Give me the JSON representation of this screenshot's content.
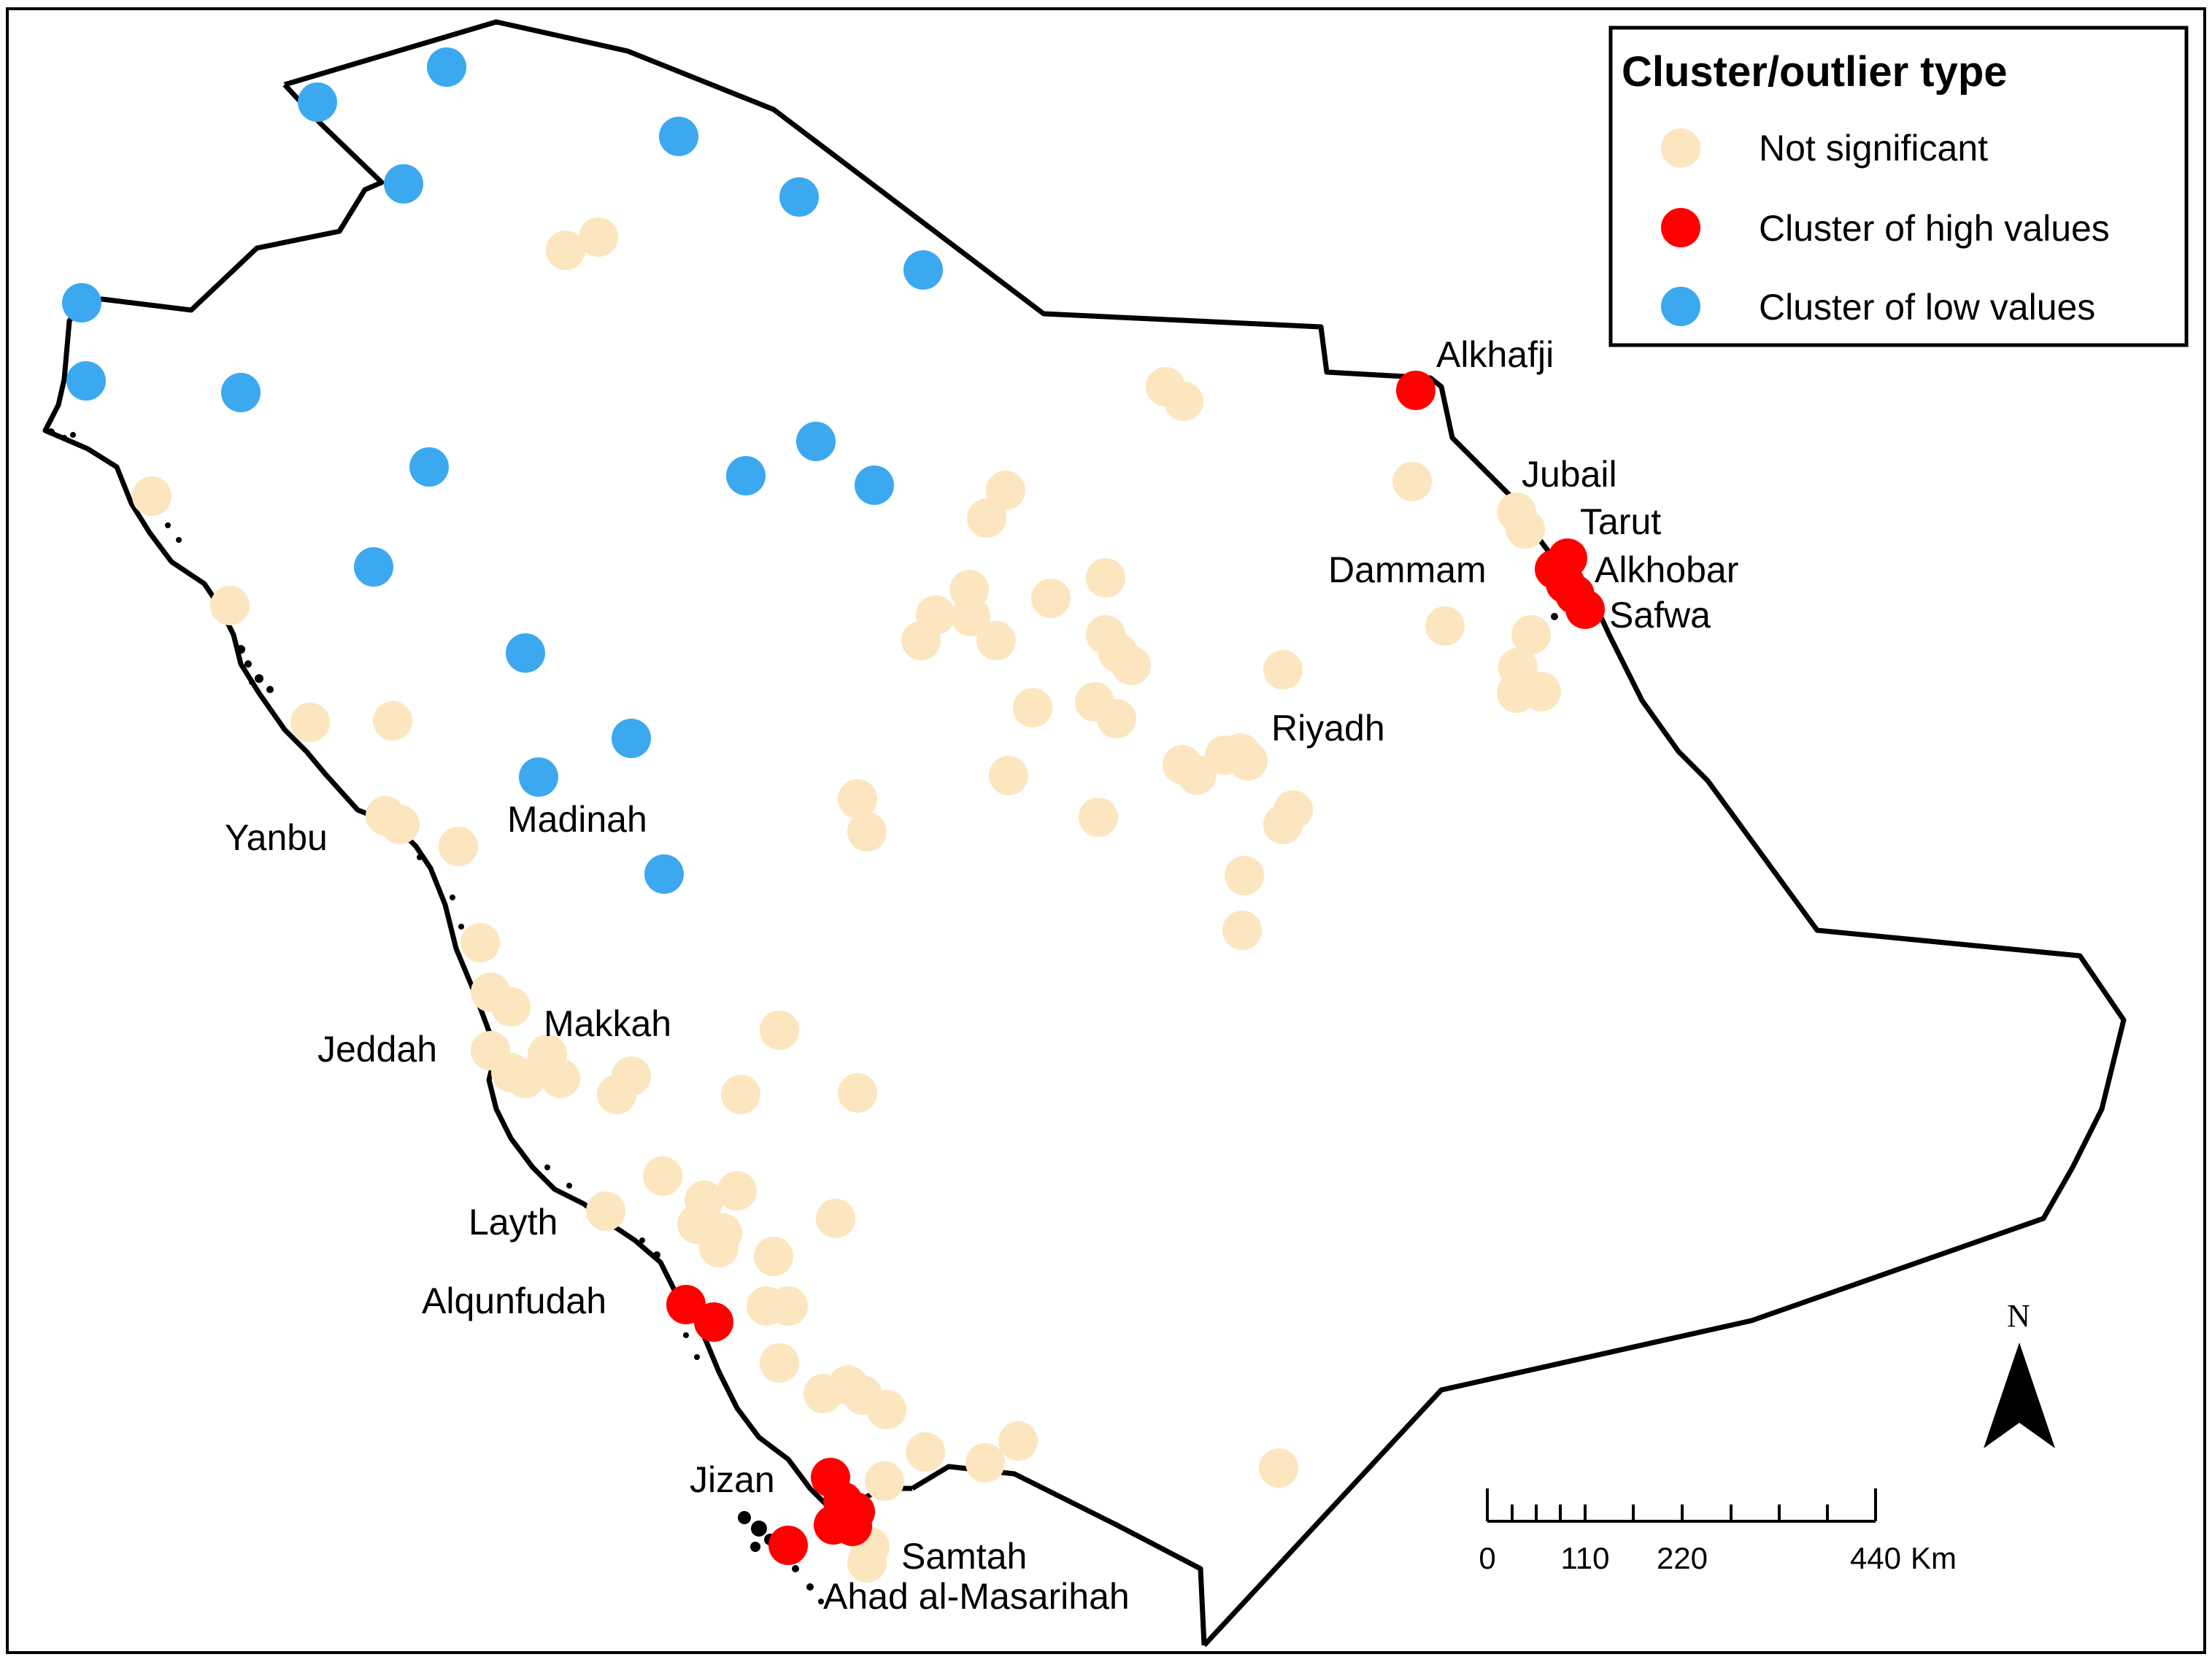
{
  "legend": {
    "title": "Cluster/outlier type",
    "items": [
      {
        "label": "Not significant",
        "color": "#fbe6bf",
        "icon": "circle-marker"
      },
      {
        "label": "Cluster of high values",
        "color": "#ff0000",
        "icon": "circle-marker"
      },
      {
        "label": "Cluster of low values",
        "color": "#3ca8f0",
        "icon": "circle-marker"
      }
    ]
  },
  "city_labels": [
    "Alkhafji",
    "Jubail",
    "Tarut",
    "Dammam",
    "Alkhobar",
    "Safwa",
    "Riyadh",
    "Madinah",
    "Yanbu",
    "Makkah",
    "Jeddah",
    "Layth",
    "Alqunfudah",
    "Jizan",
    "Samtah",
    "Ahad al-Masarihah"
  ],
  "north_arrow": {
    "label": "N"
  },
  "scale_bar": {
    "labels": [
      "0",
      "110",
      "220",
      "440"
    ],
    "unit": "Km"
  },
  "colors": {
    "not_significant": "#fbe6bf",
    "high": "#ff0000",
    "low": "#3ca8f0",
    "border": "#000000"
  }
}
